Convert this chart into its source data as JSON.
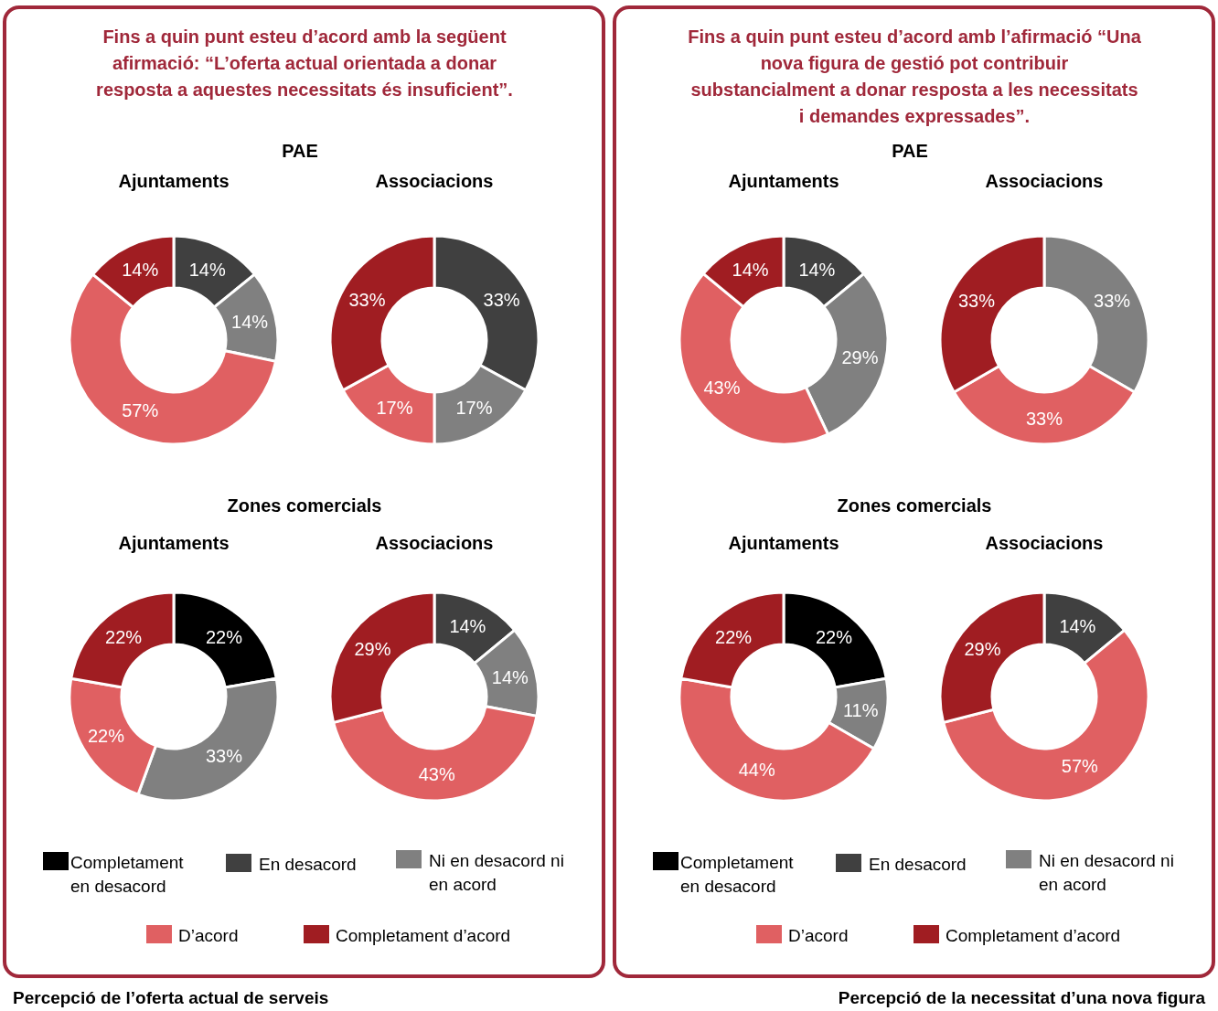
{
  "chart_data": [
    {
      "type": "donut",
      "title": "Ajuntaments",
      "annotations": [
        "Fins a quin punt esteu d’acord amb la següent afirmació: “L’oferta actual orientada a donar resposta a aquestes necessitats és insuficient”.",
        "PAE",
        "Percepció de l’oferta actual de serveis"
      ],
      "categories": [
        null,
        null,
        null,
        null,
        null
      ],
      "values": [
        0,
        14,
        14,
        57,
        14
      ],
      "colors": [
        "#000000",
        "#404040",
        "#808080",
        "#e06062",
        "#a01d22"
      ],
      "value_labels": [
        null,
        "14%",
        "14%",
        "57%",
        "14%"
      ]
    },
    {
      "type": "donut",
      "title": "Associacions",
      "categories": [
        null,
        null,
        null,
        null,
        null
      ],
      "values": [
        0,
        33,
        17,
        17,
        33
      ],
      "colors": [
        "#000000",
        "#404040",
        "#808080",
        "#e06062",
        "#a01d22"
      ],
      "value_labels": [
        null,
        "33%",
        "17%",
        "17%",
        "33%"
      ]
    },
    {
      "type": "donut",
      "title": "Ajuntaments",
      "annotations": [
        "Zones comercials"
      ],
      "legend": "bottom",
      "categories": [
        "Completament en desacord",
        "En desacord",
        "Ni en desacord ni en acord",
        "D’acord",
        "Completament d’acord"
      ],
      "values": [
        22,
        0,
        33,
        22,
        22
      ],
      "colors": [
        "#000000",
        "#404040",
        "#808080",
        "#e06062",
        "#a01d22"
      ],
      "value_labels": [
        "22%",
        null,
        "33%",
        "22%",
        "22%"
      ]
    },
    {
      "type": "donut",
      "title": "Associacions",
      "categories": [
        null,
        null,
        null,
        null,
        null
      ],
      "values": [
        0,
        14,
        14,
        43,
        29
      ],
      "colors": [
        "#000000",
        "#404040",
        "#808080",
        "#e06062",
        "#a01d22"
      ],
      "value_labels": [
        null,
        "14%",
        "14%",
        "43%",
        "29%"
      ]
    },
    {
      "type": "donut",
      "title": "Ajuntaments",
      "annotations": [
        "Fins a quin punt esteu d’acord amb l’afirmació “Una nova figura de gestió pot contribuir substancialment a donar resposta a les necessitats i demandes expressades”.",
        "PAE",
        "Percepció de la necessitat d’una nova figura"
      ],
      "categories": [
        null,
        null,
        null,
        null,
        null
      ],
      "values": [
        0,
        14,
        29,
        43,
        14
      ],
      "colors": [
        "#000000",
        "#404040",
        "#808080",
        "#e06062",
        "#a01d22"
      ],
      "value_labels": [
        null,
        "14%",
        "29%",
        "43%",
        "14%"
      ]
    },
    {
      "type": "donut",
      "title": "Associacions",
      "categories": [
        null,
        null,
        null,
        null,
        null
      ],
      "values": [
        0,
        0,
        33,
        33,
        33
      ],
      "colors": [
        "#000000",
        "#404040",
        "#808080",
        "#e06062",
        "#a01d22"
      ],
      "value_labels": [
        null,
        null,
        "33%",
        "33%",
        "33%"
      ]
    },
    {
      "type": "donut",
      "title": "Ajuntaments",
      "annotations": [
        "Zones comercials"
      ],
      "legend": "bottom",
      "categories": [
        "Completament en desacord",
        "En desacord",
        "Ni en desacord ni en acord",
        "D’acord",
        "Completament d’acord"
      ],
      "values": [
        22,
        0,
        11,
        44,
        22
      ],
      "colors": [
        "#000000",
        "#404040",
        "#808080",
        "#e06062",
        "#a01d22"
      ],
      "value_labels": [
        "22%",
        null,
        "11%",
        "44%",
        "22%"
      ]
    },
    {
      "type": "donut",
      "title": "Associacions",
      "categories": [
        null,
        null,
        null,
        null,
        null
      ],
      "values": [
        0,
        14,
        0,
        57,
        29
      ],
      "colors": [
        "#000000",
        "#404040",
        "#808080",
        "#e06062",
        "#a01d22"
      ],
      "value_labels": [
        null,
        "14%",
        null,
        "57%",
        "29%"
      ]
    }
  ]
}
